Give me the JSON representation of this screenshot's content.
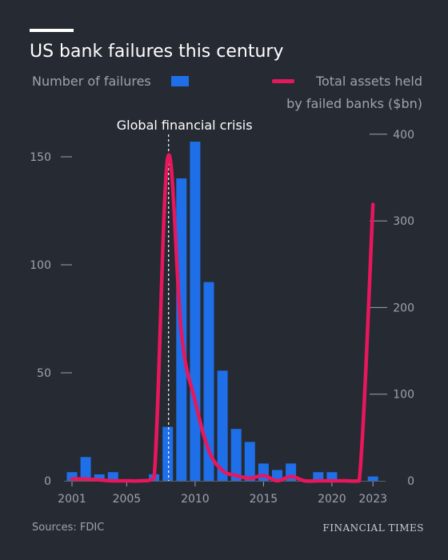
{
  "header": {
    "title": "US bank failures this century",
    "legend_bars": "Number of failures",
    "legend_line_1": "Total assets held",
    "legend_line_2": "by failed banks ($bn)"
  },
  "footer": {
    "source": "Sources: FDIC",
    "brand": "FINANCIAL TIMES"
  },
  "colors": {
    "background": "#262a33",
    "bars": "#1f6fe8",
    "line": "#e8175d",
    "axis_text": "#9ea3ad"
  },
  "chart_data": {
    "type": "bar",
    "title": "US bank failures this century",
    "x": [
      2001,
      2002,
      2003,
      2004,
      2005,
      2006,
      2007,
      2008,
      2009,
      2010,
      2011,
      2012,
      2013,
      2014,
      2015,
      2016,
      2017,
      2018,
      2019,
      2020,
      2021,
      2022,
      2023
    ],
    "x_tick_labels": [
      "2001",
      "2005",
      "2010",
      "2015",
      "2020",
      "2023"
    ],
    "x_ticks": [
      2001,
      2005,
      2010,
      2015,
      2020,
      2023
    ],
    "series": [
      {
        "name": "Number of failures",
        "type": "bar",
        "axis": "left",
        "values": [
          4,
          11,
          3,
          4,
          0,
          0,
          3,
          25,
          140,
          157,
          92,
          51,
          24,
          18,
          8,
          5,
          8,
          0,
          4,
          4,
          0,
          0,
          2
        ]
      },
      {
        "name": "Total assets held by failed banks ($bn)",
        "type": "line",
        "axis": "right",
        "values": [
          2,
          2,
          1,
          0,
          0,
          0,
          3,
          373,
          170,
          92,
          35,
          12,
          6,
          3,
          6,
          0,
          5,
          0,
          0,
          0,
          0,
          0,
          319
        ]
      }
    ],
    "y_left": {
      "ticks": [
        0,
        50,
        100,
        150
      ],
      "tick_labels": [
        "0",
        "50",
        "100",
        "150"
      ],
      "range": [
        0,
        160
      ]
    },
    "y_right": {
      "ticks": [
        0,
        100,
        200,
        300,
        400
      ],
      "tick_labels": [
        "0",
        "100",
        "200",
        "300",
        "400"
      ],
      "range": [
        0,
        400
      ]
    },
    "annotation": {
      "label": "Global financial crisis",
      "x": 2008
    },
    "grid": false
  }
}
